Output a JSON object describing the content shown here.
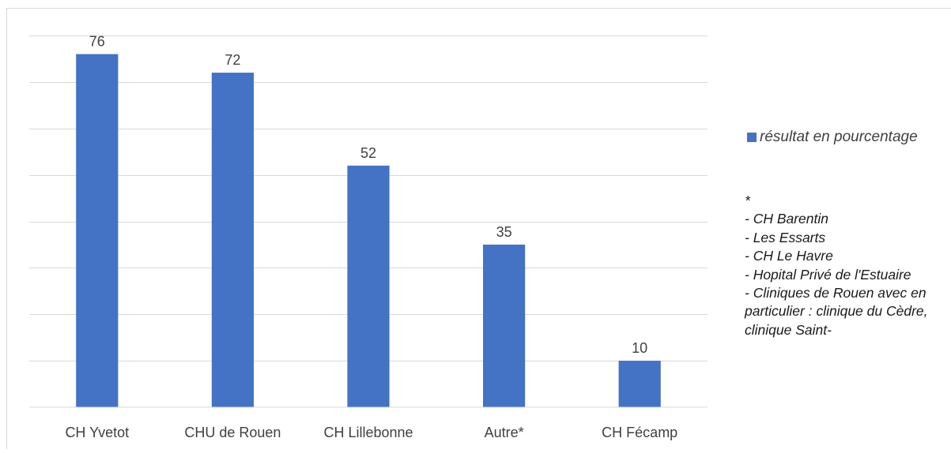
{
  "chart_data": {
    "type": "bar",
    "title": "",
    "xlabel": "",
    "ylabel": "",
    "categories": [
      "CH Yvetot",
      "CHU de Rouen",
      "CH Lillebonne",
      "Autre*",
      "CH Fécamp"
    ],
    "series": [
      {
        "name": "résultat en pourcentage",
        "values": [
          76,
          72,
          52,
          35,
          10
        ],
        "color": "#4472c4"
      }
    ],
    "data_labels": [
      "76",
      "72",
      "52",
      "35",
      "10"
    ],
    "ylim": [
      0,
      80
    ],
    "y_gridline_step": 10,
    "y_tick_labels_shown": false,
    "grid": true,
    "legend_position": "right",
    "gridline_color": "#d9d9d9",
    "frame_color": "#d9d9d9"
  },
  "note": {
    "lines": [
      "*",
      "- CH Barentin",
      "- Les Essarts",
      "- CH Le Havre",
      "- Hopital Privé de l'Estuaire",
      "- Cliniques de Rouen avec en particulier : clinique du Cèdre, clinique Saint-"
    ]
  }
}
